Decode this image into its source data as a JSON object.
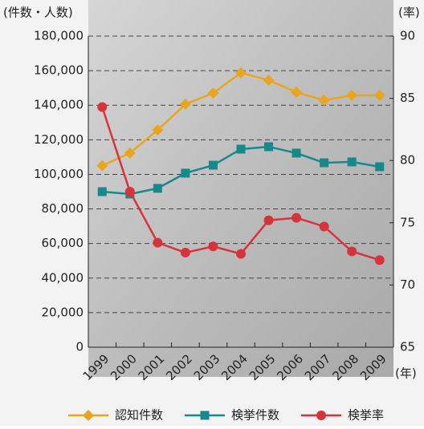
{
  "chart_data": {
    "type": "line",
    "y_axis_label": "(件数・人数)",
    "y2_axis_label": "(率)",
    "x_axis_label": "(年)",
    "categories": [
      "1999",
      "2000",
      "2001",
      "2002",
      "2003",
      "2004",
      "2005",
      "2006",
      "2007",
      "2008",
      "2009"
    ],
    "ylim": [
      0,
      180000
    ],
    "yticks": [
      0,
      {
        "value": 20000,
        "label": "20,000"
      },
      {
        "value": 40000,
        "label": "40,000"
      },
      {
        "value": 60000,
        "label": "60,000"
      },
      {
        "value": 80000,
        "label": "80,000"
      },
      {
        "value": 100000,
        "label": "100,000"
      },
      {
        "value": 120000,
        "label": "120,000"
      },
      {
        "value": 140000,
        "label": "140,000"
      },
      {
        "value": 160000,
        "label": "160,000"
      },
      {
        "value": 180000,
        "label": "180,000"
      }
    ],
    "y2lim": [
      65,
      90
    ],
    "y2ticks": [
      65,
      70,
      75,
      80,
      85,
      90
    ],
    "grid": true,
    "series": [
      {
        "name": "認知件数",
        "color": "#e9a51d",
        "marker": "diamond",
        "values": [
          105000,
          112300,
          125700,
          140600,
          147000,
          158700,
          154500,
          147500,
          142900,
          145700,
          145700
        ]
      },
      {
        "name": "検挙件数",
        "color": "#17898b",
        "marker": "square",
        "values": [
          90000,
          88600,
          91900,
          100700,
          105300,
          114600,
          116000,
          112300,
          106700,
          107200,
          104400
        ]
      },
      {
        "name": "検挙率",
        "color": "#d8333b",
        "marker": "circle",
        "axis": "y2",
        "values": [
          84.3,
          77.5,
          73.4,
          72.6,
          73.1,
          72.5,
          75.2,
          75.4,
          74.7,
          72.7,
          72.0
        ]
      }
    ]
  }
}
